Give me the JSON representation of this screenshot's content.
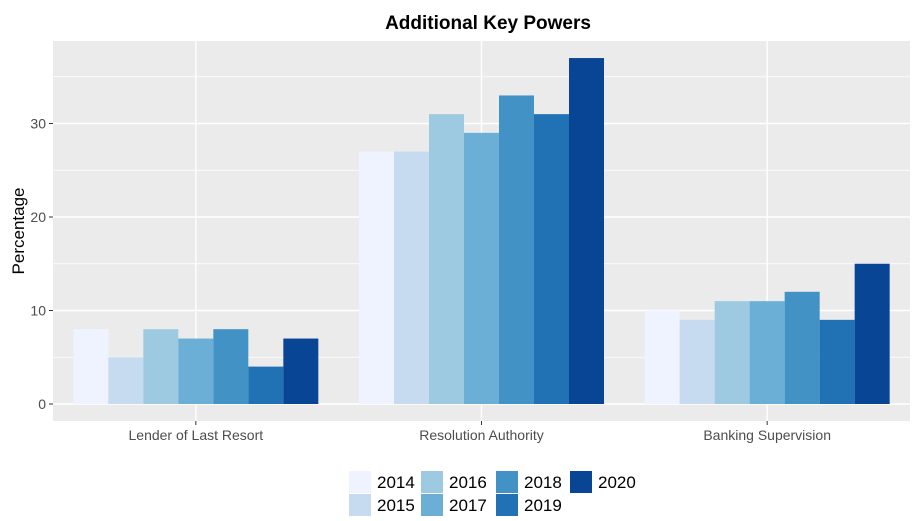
{
  "chart_data": {
    "type": "bar",
    "title": "Additional Key Powers",
    "xlabel": "",
    "ylabel": "Percentage",
    "categories": [
      "Lender of Last Resort",
      "Resolution Authority",
      "Banking Supervision"
    ],
    "ylim": [
      0,
      39
    ],
    "yticks": [
      0,
      10,
      20,
      30
    ],
    "grid": true,
    "legend_position": "bottom",
    "series": [
      {
        "name": "2014",
        "color": "#eff3ff",
        "values": [
          8,
          27,
          10
        ]
      },
      {
        "name": "2015",
        "color": "#c6dbef",
        "values": [
          5,
          27,
          9
        ]
      },
      {
        "name": "2016",
        "color": "#9ecae1",
        "values": [
          8,
          31,
          11
        ]
      },
      {
        "name": "2017",
        "color": "#6baed6",
        "values": [
          7,
          29,
          11
        ]
      },
      {
        "name": "2018",
        "color": "#4292c6",
        "values": [
          8,
          33,
          12
        ]
      },
      {
        "name": "2019",
        "color": "#2171b5",
        "values": [
          4,
          31,
          9
        ]
      },
      {
        "name": "2020",
        "color": "#084594",
        "values": [
          7,
          37,
          15
        ]
      }
    ]
  }
}
